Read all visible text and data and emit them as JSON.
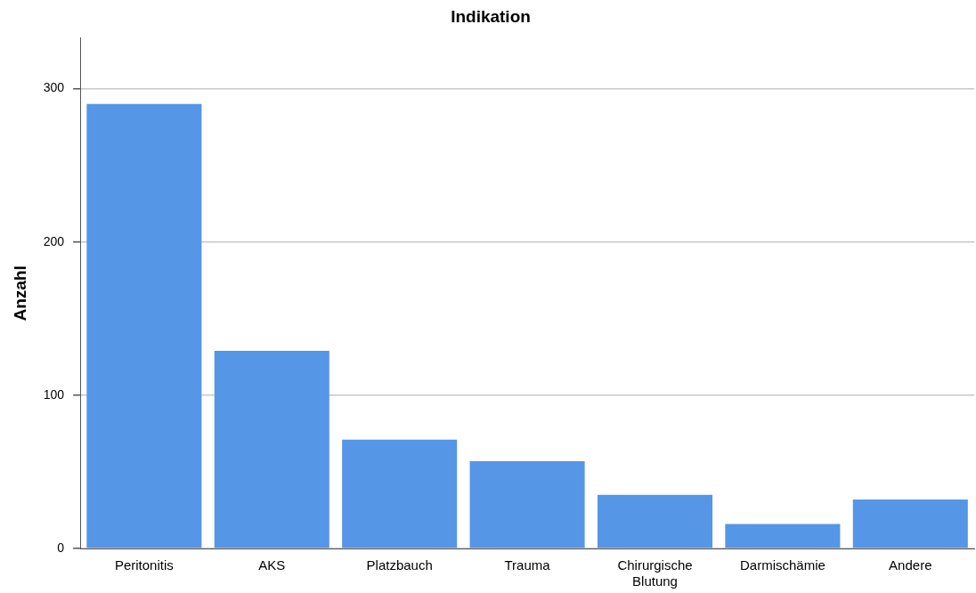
{
  "chart_data": {
    "type": "bar",
    "title": "Indikation",
    "ylabel": "Anzahl",
    "categories": [
      "Peritonitis",
      "AKS",
      "Platzbauch",
      "Trauma",
      "Chirurgische Blutung",
      "Darmischämie",
      "Andere"
    ],
    "values": [
      290,
      129,
      71,
      57,
      35,
      16,
      32
    ],
    "color": "#5596e6",
    "ylim": [
      0,
      333
    ],
    "yticks": [
      0,
      100,
      200,
      300
    ],
    "grid": "y"
  }
}
